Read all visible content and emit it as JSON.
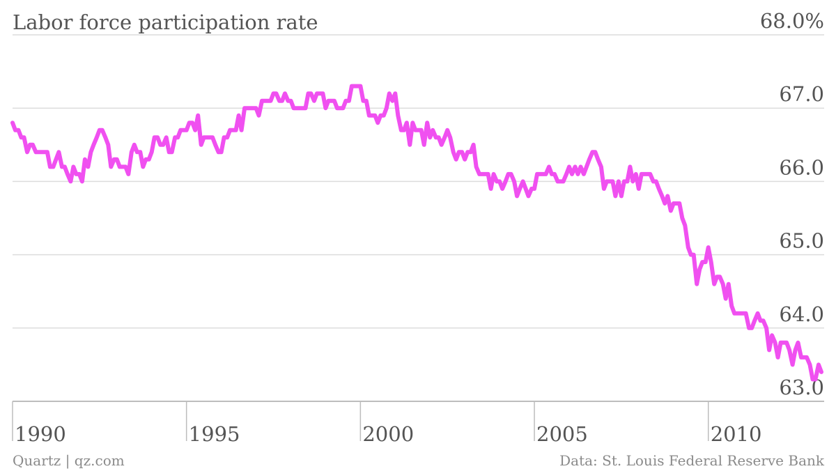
{
  "chart_data": {
    "type": "line",
    "title": "Labor force participation rate",
    "ylabel": "",
    "xlabel": "",
    "ylim": [
      63.0,
      68.0
    ],
    "xlim": [
      1990.0,
      2013.33
    ],
    "grid": true,
    "y_ticks": [
      {
        "value": 68.0,
        "label": "68.0%"
      },
      {
        "value": 67.0,
        "label": "67.0"
      },
      {
        "value": 66.0,
        "label": "66.0"
      },
      {
        "value": 65.0,
        "label": "65.0"
      },
      {
        "value": 64.0,
        "label": "64.0"
      },
      {
        "value": 63.0,
        "label": "63.0"
      }
    ],
    "x_ticks": [
      {
        "value": 1990,
        "label": "1990"
      },
      {
        "value": 1995,
        "label": "1995"
      },
      {
        "value": 2000,
        "label": "2000"
      },
      {
        "value": 2005,
        "label": "2005"
      },
      {
        "value": 2010,
        "label": "2010"
      }
    ],
    "line_color": "#f050f0",
    "series": [
      {
        "points": [
          [
            1990.0,
            66.8
          ],
          [
            1990.08,
            66.7
          ],
          [
            1990.17,
            66.7
          ],
          [
            1990.25,
            66.6
          ],
          [
            1990.33,
            66.6
          ],
          [
            1990.42,
            66.4
          ],
          [
            1990.5,
            66.5
          ],
          [
            1990.58,
            66.5
          ],
          [
            1990.67,
            66.4
          ],
          [
            1990.75,
            66.4
          ],
          [
            1990.83,
            66.4
          ],
          [
            1990.92,
            66.4
          ],
          [
            1991.0,
            66.4
          ],
          [
            1991.08,
            66.2
          ],
          [
            1991.17,
            66.2
          ],
          [
            1991.25,
            66.3
          ],
          [
            1991.33,
            66.4
          ],
          [
            1991.42,
            66.2
          ],
          [
            1991.5,
            66.2
          ],
          [
            1991.58,
            66.1
          ],
          [
            1991.67,
            66.0
          ],
          [
            1991.75,
            66.2
          ],
          [
            1991.83,
            66.1
          ],
          [
            1991.92,
            66.1
          ],
          [
            1992.0,
            66.0
          ],
          [
            1992.08,
            66.3
          ],
          [
            1992.17,
            66.2
          ],
          [
            1992.25,
            66.4
          ],
          [
            1992.33,
            66.5
          ],
          [
            1992.42,
            66.6
          ],
          [
            1992.5,
            66.7
          ],
          [
            1992.58,
            66.7
          ],
          [
            1992.67,
            66.6
          ],
          [
            1992.75,
            66.5
          ],
          [
            1992.83,
            66.2
          ],
          [
            1992.92,
            66.3
          ],
          [
            1993.0,
            66.3
          ],
          [
            1993.08,
            66.2
          ],
          [
            1993.17,
            66.2
          ],
          [
            1993.25,
            66.2
          ],
          [
            1993.33,
            66.1
          ],
          [
            1993.42,
            66.4
          ],
          [
            1993.5,
            66.5
          ],
          [
            1993.58,
            66.4
          ],
          [
            1993.67,
            66.4
          ],
          [
            1993.75,
            66.2
          ],
          [
            1993.83,
            66.3
          ],
          [
            1993.92,
            66.3
          ],
          [
            1994.0,
            66.4
          ],
          [
            1994.08,
            66.6
          ],
          [
            1994.17,
            66.6
          ],
          [
            1994.25,
            66.5
          ],
          [
            1994.33,
            66.5
          ],
          [
            1994.42,
            66.6
          ],
          [
            1994.5,
            66.4
          ],
          [
            1994.58,
            66.4
          ],
          [
            1994.67,
            66.6
          ],
          [
            1994.75,
            66.6
          ],
          [
            1994.83,
            66.7
          ],
          [
            1994.92,
            66.7
          ],
          [
            1995.0,
            66.7
          ],
          [
            1995.08,
            66.8
          ],
          [
            1995.17,
            66.8
          ],
          [
            1995.25,
            66.7
          ],
          [
            1995.33,
            66.9
          ],
          [
            1995.42,
            66.5
          ],
          [
            1995.5,
            66.6
          ],
          [
            1995.58,
            66.6
          ],
          [
            1995.67,
            66.6
          ],
          [
            1995.75,
            66.6
          ],
          [
            1995.83,
            66.5
          ],
          [
            1995.92,
            66.4
          ],
          [
            1996.0,
            66.4
          ],
          [
            1996.08,
            66.6
          ],
          [
            1996.17,
            66.6
          ],
          [
            1996.25,
            66.7
          ],
          [
            1996.33,
            66.7
          ],
          [
            1996.42,
            66.7
          ],
          [
            1996.5,
            66.9
          ],
          [
            1996.58,
            66.7
          ],
          [
            1996.67,
            67.0
          ],
          [
            1996.75,
            67.0
          ],
          [
            1996.83,
            67.0
          ],
          [
            1996.92,
            67.0
          ],
          [
            1997.0,
            67.0
          ],
          [
            1997.08,
            66.9
          ],
          [
            1997.17,
            67.1
          ],
          [
            1997.25,
            67.1
          ],
          [
            1997.33,
            67.1
          ],
          [
            1997.42,
            67.1
          ],
          [
            1997.5,
            67.2
          ],
          [
            1997.58,
            67.2
          ],
          [
            1997.67,
            67.1
          ],
          [
            1997.75,
            67.1
          ],
          [
            1997.83,
            67.2
          ],
          [
            1997.92,
            67.1
          ],
          [
            1998.0,
            67.1
          ],
          [
            1998.08,
            67.0
          ],
          [
            1998.17,
            67.0
          ],
          [
            1998.25,
            67.0
          ],
          [
            1998.33,
            67.0
          ],
          [
            1998.42,
            67.0
          ],
          [
            1998.5,
            67.2
          ],
          [
            1998.58,
            67.2
          ],
          [
            1998.67,
            67.1
          ],
          [
            1998.75,
            67.2
          ],
          [
            1998.83,
            67.2
          ],
          [
            1998.92,
            67.2
          ],
          [
            1999.0,
            67.0
          ],
          [
            1999.08,
            67.1
          ],
          [
            1999.17,
            67.1
          ],
          [
            1999.25,
            67.1
          ],
          [
            1999.33,
            67.0
          ],
          [
            1999.42,
            67.0
          ],
          [
            1999.5,
            67.0
          ],
          [
            1999.58,
            67.1
          ],
          [
            1999.67,
            67.1
          ],
          [
            1999.75,
            67.3
          ],
          [
            1999.83,
            67.3
          ],
          [
            1999.92,
            67.3
          ],
          [
            2000.0,
            67.3
          ],
          [
            2000.08,
            67.1
          ],
          [
            2000.17,
            67.1
          ],
          [
            2000.25,
            66.9
          ],
          [
            2000.33,
            66.9
          ],
          [
            2000.42,
            66.9
          ],
          [
            2000.5,
            66.8
          ],
          [
            2000.58,
            66.9
          ],
          [
            2000.67,
            66.9
          ],
          [
            2000.75,
            67.0
          ],
          [
            2000.83,
            67.2
          ],
          [
            2000.92,
            67.1
          ],
          [
            2001.0,
            67.2
          ],
          [
            2001.08,
            66.9
          ],
          [
            2001.17,
            66.7
          ],
          [
            2001.25,
            66.7
          ],
          [
            2001.33,
            66.8
          ],
          [
            2001.42,
            66.5
          ],
          [
            2001.5,
            66.8
          ],
          [
            2001.58,
            66.7
          ],
          [
            2001.67,
            66.7
          ],
          [
            2001.75,
            66.7
          ],
          [
            2001.83,
            66.5
          ],
          [
            2001.92,
            66.8
          ],
          [
            2002.0,
            66.6
          ],
          [
            2002.08,
            66.7
          ],
          [
            2002.17,
            66.6
          ],
          [
            2002.25,
            66.6
          ],
          [
            2002.33,
            66.5
          ],
          [
            2002.42,
            66.6
          ],
          [
            2002.5,
            66.7
          ],
          [
            2002.58,
            66.6
          ],
          [
            2002.67,
            66.4
          ],
          [
            2002.75,
            66.3
          ],
          [
            2002.83,
            66.4
          ],
          [
            2002.92,
            66.4
          ],
          [
            2003.0,
            66.3
          ],
          [
            2003.08,
            66.4
          ],
          [
            2003.17,
            66.4
          ],
          [
            2003.25,
            66.5
          ],
          [
            2003.33,
            66.2
          ],
          [
            2003.42,
            66.1
          ],
          [
            2003.5,
            66.1
          ],
          [
            2003.58,
            66.1
          ],
          [
            2003.67,
            66.1
          ],
          [
            2003.75,
            65.9
          ],
          [
            2003.83,
            66.1
          ],
          [
            2003.92,
            66.0
          ],
          [
            2004.0,
            66.0
          ],
          [
            2004.08,
            65.9
          ],
          [
            2004.17,
            66.0
          ],
          [
            2004.25,
            66.1
          ],
          [
            2004.33,
            66.1
          ],
          [
            2004.42,
            66.0
          ],
          [
            2004.5,
            65.8
          ],
          [
            2004.58,
            65.9
          ],
          [
            2004.67,
            66.0
          ],
          [
            2004.75,
            65.9
          ],
          [
            2004.83,
            65.8
          ],
          [
            2004.92,
            65.9
          ],
          [
            2005.0,
            65.9
          ],
          [
            2005.08,
            66.1
          ],
          [
            2005.17,
            66.1
          ],
          [
            2005.25,
            66.1
          ],
          [
            2005.33,
            66.1
          ],
          [
            2005.42,
            66.2
          ],
          [
            2005.5,
            66.1
          ],
          [
            2005.58,
            66.1
          ],
          [
            2005.67,
            66.0
          ],
          [
            2005.75,
            66.0
          ],
          [
            2005.83,
            66.0
          ],
          [
            2005.92,
            66.1
          ],
          [
            2006.0,
            66.2
          ],
          [
            2006.08,
            66.1
          ],
          [
            2006.17,
            66.2
          ],
          [
            2006.25,
            66.1
          ],
          [
            2006.33,
            66.2
          ],
          [
            2006.42,
            66.1
          ],
          [
            2006.5,
            66.2
          ],
          [
            2006.58,
            66.3
          ],
          [
            2006.67,
            66.4
          ],
          [
            2006.75,
            66.4
          ],
          [
            2006.83,
            66.3
          ],
          [
            2006.92,
            66.2
          ],
          [
            2007.0,
            65.9
          ],
          [
            2007.08,
            66.0
          ],
          [
            2007.17,
            66.0
          ],
          [
            2007.25,
            66.0
          ],
          [
            2007.33,
            65.8
          ],
          [
            2007.42,
            66.0
          ],
          [
            2007.5,
            65.8
          ],
          [
            2007.58,
            66.0
          ],
          [
            2007.67,
            66.0
          ],
          [
            2007.75,
            66.2
          ],
          [
            2007.83,
            66.0
          ],
          [
            2007.92,
            66.1
          ],
          [
            2008.0,
            65.9
          ],
          [
            2008.08,
            66.1
          ],
          [
            2008.17,
            66.1
          ],
          [
            2008.25,
            66.1
          ],
          [
            2008.33,
            66.1
          ],
          [
            2008.42,
            66.0
          ],
          [
            2008.5,
            66.0
          ],
          [
            2008.58,
            65.9
          ],
          [
            2008.67,
            65.8
          ],
          [
            2008.75,
            65.7
          ],
          [
            2008.83,
            65.8
          ],
          [
            2008.92,
            65.6
          ],
          [
            2009.0,
            65.7
          ],
          [
            2009.08,
            65.7
          ],
          [
            2009.17,
            65.7
          ],
          [
            2009.25,
            65.5
          ],
          [
            2009.33,
            65.4
          ],
          [
            2009.42,
            65.1
          ],
          [
            2009.5,
            65.0
          ],
          [
            2009.58,
            65.0
          ],
          [
            2009.67,
            64.6
          ],
          [
            2009.75,
            64.8
          ],
          [
            2009.83,
            64.9
          ],
          [
            2009.92,
            64.9
          ],
          [
            2010.0,
            65.1
          ],
          [
            2010.08,
            64.9
          ],
          [
            2010.17,
            64.6
          ],
          [
            2010.25,
            64.7
          ],
          [
            2010.33,
            64.7
          ],
          [
            2010.42,
            64.6
          ],
          [
            2010.5,
            64.4
          ],
          [
            2010.58,
            64.6
          ],
          [
            2010.67,
            64.3
          ],
          [
            2010.75,
            64.2
          ],
          [
            2010.83,
            64.2
          ],
          [
            2010.92,
            64.2
          ],
          [
            2011.0,
            64.2
          ],
          [
            2011.08,
            64.2
          ],
          [
            2011.17,
            64.0
          ],
          [
            2011.25,
            64.0
          ],
          [
            2011.33,
            64.1
          ],
          [
            2011.42,
            64.2
          ],
          [
            2011.5,
            64.1
          ],
          [
            2011.58,
            64.1
          ],
          [
            2011.67,
            64.0
          ],
          [
            2011.75,
            63.7
          ],
          [
            2011.83,
            63.9
          ],
          [
            2011.92,
            63.8
          ],
          [
            2012.0,
            63.6
          ],
          [
            2012.08,
            63.8
          ],
          [
            2012.17,
            63.8
          ],
          [
            2012.25,
            63.8
          ],
          [
            2012.33,
            63.7
          ],
          [
            2012.42,
            63.5
          ],
          [
            2012.5,
            63.7
          ],
          [
            2012.58,
            63.8
          ],
          [
            2012.67,
            63.6
          ],
          [
            2012.75,
            63.6
          ],
          [
            2012.83,
            63.6
          ],
          [
            2012.92,
            63.5
          ],
          [
            2013.0,
            63.3
          ],
          [
            2013.08,
            63.3
          ],
          [
            2013.17,
            63.5
          ],
          [
            2013.25,
            63.4
          ]
        ]
      }
    ]
  },
  "footer": {
    "source_left": "Quartz | qz.com",
    "source_right": "Data: St. Louis Federal Reserve Bank"
  }
}
